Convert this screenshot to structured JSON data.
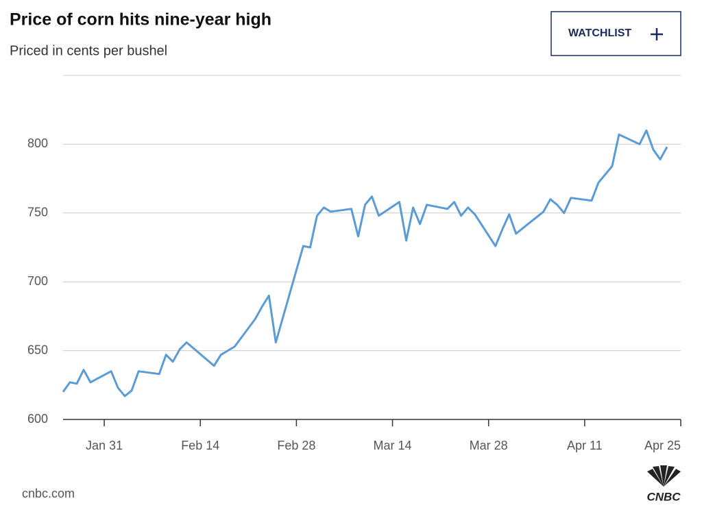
{
  "header": {
    "title": "Price of corn hits nine-year high",
    "subtitle": "Priced in cents per bushel",
    "button": "WATCHLIST"
  },
  "footer": {
    "source": "cnbc.com",
    "logo": "CNBC"
  },
  "chart_data": {
    "type": "line",
    "x": [
      "Jan 25",
      "Jan 26",
      "Jan 27",
      "Jan 28",
      "Jan 29",
      "Feb 1",
      "Feb 2",
      "Feb 3",
      "Feb 4",
      "Feb 5",
      "Feb 8",
      "Feb 9",
      "Feb 10",
      "Feb 11",
      "Feb 12",
      "Feb 16",
      "Feb 17",
      "Feb 18",
      "Feb 19",
      "Feb 22",
      "Feb 23",
      "Feb 24",
      "Feb 25",
      "Mar 1",
      "Mar 2",
      "Mar 3",
      "Mar 4",
      "Mar 5",
      "Mar 8",
      "Mar 9",
      "Mar 10",
      "Mar 11",
      "Mar 12",
      "Mar 15",
      "Mar 16",
      "Mar 17",
      "Mar 18",
      "Mar 19",
      "Mar 22",
      "Mar 23",
      "Mar 24",
      "Mar 25",
      "Mar 26",
      "Mar 29",
      "Mar 30",
      "Mar 31",
      "Apr 1",
      "Apr 5",
      "Apr 6",
      "Apr 7",
      "Apr 8",
      "Apr 9",
      "Apr 12",
      "Apr 13",
      "Apr 14",
      "Apr 15",
      "Apr 16",
      "Apr 19",
      "Apr 20",
      "Apr 21",
      "Apr 22",
      "Apr 23"
    ],
    "values": [
      620,
      627,
      626,
      636,
      627,
      635,
      623,
      617,
      621,
      635,
      633,
      647,
      642,
      651,
      656,
      639,
      647,
      650,
      653,
      673,
      682,
      690,
      656,
      726,
      725,
      748,
      754,
      751,
      753,
      733,
      756,
      762,
      748,
      758,
      730,
      754,
      742,
      756,
      753,
      758,
      748,
      754,
      749,
      726,
      738,
      749,
      735,
      751,
      760,
      756,
      750,
      761,
      759,
      772,
      778,
      784,
      807,
      800,
      810,
      796,
      789,
      798
    ],
    "color": "#5b9bd5",
    "xlim": [
      "Jan 25",
      "Apr 25"
    ],
    "xticks": [
      "Jan 31",
      "Feb 14",
      "Feb 28",
      "Mar 14",
      "Mar 28",
      "Apr 11",
      "Apr 25"
    ],
    "ylim": [
      600,
      850
    ],
    "yticks": [
      600,
      650,
      700,
      750,
      800
    ],
    "grid": true
  }
}
